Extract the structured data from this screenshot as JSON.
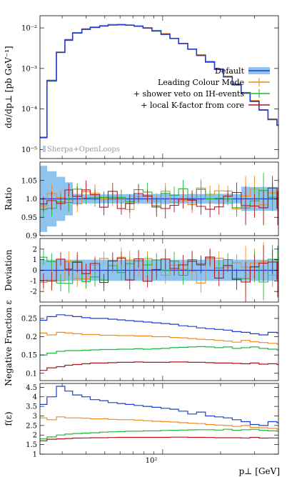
{
  "chart_data": {
    "type": "line",
    "x_axis": {
      "label": "p⊥ [GeV]",
      "scale": "log",
      "range": [
        23,
        400
      ],
      "tick_label": "10²"
    },
    "colors": {
      "Default": "#1f3cd6",
      "Leading Colour Mode": "#f08c1e",
      "+ shower veto on IH-events": "#1fb83b",
      "+ local K-factor from core": "#b3141d",
      "band": "#8fc4ef"
    },
    "watermark": "Sherpa+OpenLoops",
    "legend": {
      "placement": "right",
      "entries": [
        "Default",
        "Leading Colour Mode",
        "+ shower veto on IH-events",
        "+ local K-factor from core"
      ]
    },
    "panels": [
      {
        "id": "spectrum",
        "ylabel": "dσ/dp⊥ [pb GeV⁻¹]",
        "yscale": "log",
        "ylim": [
          6e-06,
          0.02
        ],
        "yticks": [
          {
            "v": 0.01,
            "label": "10⁻²"
          },
          {
            "v": 0.001,
            "label": "10⁻³"
          },
          {
            "v": 0.0001,
            "label": "10⁻⁴"
          },
          {
            "v": 1e-05,
            "label": "10⁻⁵"
          }
        ],
        "series": [
          {
            "name": "Default",
            "edges": [
              23,
              25,
              28,
              31,
              34,
              38,
              42,
              47,
              52,
              58,
              64,
              71,
              79,
              88,
              98,
              109,
              121,
              135,
              150,
              167,
              186,
              207,
              230,
              256,
              285,
              317,
              353,
              393,
              400
            ],
            "values": [
              2e-05,
              0.0005,
              0.0025,
              0.005,
              0.0075,
              0.0092,
              0.0103,
              0.0112,
              0.0118,
              0.012,
              0.0117,
              0.011,
              0.0099,
              0.0085,
              0.007,
              0.0055,
              0.0041,
              0.003,
              0.0021,
              0.00145,
              0.00095,
              0.00062,
              0.0004,
              0.00025,
              0.000155,
              9.5e-05,
              5.5e-05,
              4e-05
            ]
          }
        ]
      },
      {
        "id": "ratio",
        "ylabel": "Ratio",
        "ylim": [
          0.9,
          1.1
        ],
        "yticks": [
          {
            "v": 0.9,
            "label": "0.9"
          },
          {
            "v": 0.95,
            "label": "0.95"
          },
          {
            "v": 1.0,
            "label": "1.0"
          },
          {
            "v": 1.05,
            "label": "1.05"
          }
        ]
      },
      {
        "id": "deviation",
        "ylabel": "Deviation",
        "ylim": [
          -3,
          3
        ],
        "yticks": [
          {
            "v": -2,
            "label": "-2"
          },
          {
            "v": -1,
            "label": "-1"
          },
          {
            "v": 0,
            "label": "0"
          },
          {
            "v": 1,
            "label": "1"
          },
          {
            "v": 2,
            "label": "2"
          }
        ]
      },
      {
        "id": "negfrac",
        "ylabel": "Negative Fraction ε",
        "ylim": [
          0.08,
          0.285
        ],
        "yticks": [
          {
            "v": 0.1,
            "label": "0.1"
          },
          {
            "v": 0.15,
            "label": "0.15"
          },
          {
            "v": 0.2,
            "label": "0.2"
          },
          {
            "v": 0.25,
            "label": "0.25"
          }
        ],
        "series": [
          {
            "name": "Default",
            "values": [
              0.245,
              0.255,
              0.26,
              0.258,
              0.255,
              0.252,
              0.25,
              0.25,
              0.248,
              0.246,
              0.244,
              0.242,
              0.24,
              0.238,
              0.236,
              0.234,
              0.23,
              0.228,
              0.224,
              0.222,
              0.22,
              0.218,
              0.214,
              0.212,
              0.208,
              0.205,
              0.212,
              0.21
            ]
          },
          {
            "name": "Leading Colour Mode",
            "values": [
              0.21,
              0.205,
              0.212,
              0.21,
              0.208,
              0.206,
              0.206,
              0.204,
              0.204,
              0.203,
              0.203,
              0.202,
              0.202,
              0.2,
              0.2,
              0.198,
              0.197,
              0.195,
              0.193,
              0.192,
              0.19,
              0.188,
              0.185,
              0.19,
              0.186,
              0.184,
              0.182,
              0.18
            ]
          },
          {
            "name": "+ shower veto on IH-events",
            "values": [
              0.15,
              0.155,
              0.16,
              0.162,
              0.162,
              0.163,
              0.164,
              0.165,
              0.165,
              0.166,
              0.166,
              0.167,
              0.166,
              0.167,
              0.168,
              0.17,
              0.171,
              0.172,
              0.173,
              0.172,
              0.17,
              0.172,
              0.168,
              0.17,
              0.172,
              0.168,
              0.166,
              0.164
            ]
          },
          {
            "name": "+ local K-factor from core",
            "values": [
              0.108,
              0.115,
              0.118,
              0.122,
              0.124,
              0.126,
              0.128,
              0.128,
              0.129,
              0.13,
              0.13,
              0.131,
              0.13,
              0.13,
              0.13,
              0.131,
              0.131,
              0.13,
              0.13,
              0.129,
              0.128,
              0.128,
              0.127,
              0.126,
              0.128,
              0.125,
              0.126,
              0.124
            ]
          }
        ]
      },
      {
        "id": "feps",
        "ylabel": "f(ε)",
        "ylim": [
          1,
          4.7
        ],
        "yticks": [
          {
            "v": 1,
            "label": "1"
          },
          {
            "v": 1.5,
            "label": "1.5"
          },
          {
            "v": 2,
            "label": "2"
          },
          {
            "v": 2.5,
            "label": "2.5"
          },
          {
            "v": 3,
            "label": "3"
          },
          {
            "v": 3.5,
            "label": "3.5"
          },
          {
            "v": 4,
            "label": "4"
          },
          {
            "v": 4.5,
            "label": "4.5"
          }
        ],
        "series": [
          {
            "name": "Default",
            "values": [
              3.6,
              4.0,
              4.55,
              4.3,
              4.1,
              4.0,
              3.85,
              3.8,
              3.7,
              3.65,
              3.6,
              3.55,
              3.5,
              3.45,
              3.4,
              3.35,
              3.25,
              3.1,
              3.2,
              3.0,
              2.95,
              2.9,
              2.8,
              2.7,
              2.55,
              2.5,
              2.7,
              2.65
            ]
          },
          {
            "name": "Leading Colour Mode",
            "values": [
              2.9,
              2.8,
              2.95,
              2.9,
              2.9,
              2.88,
              2.85,
              2.85,
              2.82,
              2.8,
              2.8,
              2.78,
              2.75,
              2.72,
              2.7,
              2.68,
              2.65,
              2.62,
              2.6,
              2.55,
              2.52,
              2.5,
              2.45,
              2.5,
              2.4,
              2.38,
              2.35,
              2.3
            ]
          },
          {
            "name": "+ shower veto on IH-events",
            "values": [
              1.8,
              1.9,
              2.0,
              2.05,
              2.08,
              2.1,
              2.12,
              2.15,
              2.17,
              2.18,
              2.2,
              2.2,
              2.22,
              2.22,
              2.24,
              2.25,
              2.26,
              2.27,
              2.28,
              2.28,
              2.26,
              2.3,
              2.25,
              2.28,
              2.3,
              2.25,
              2.22,
              2.2
            ]
          },
          {
            "name": "+ local K-factor from core",
            "values": [
              1.7,
              1.78,
              1.8,
              1.82,
              1.84,
              1.85,
              1.86,
              1.86,
              1.87,
              1.88,
              1.88,
              1.88,
              1.88,
              1.88,
              1.88,
              1.89,
              1.89,
              1.88,
              1.88,
              1.87,
              1.86,
              1.86,
              1.86,
              1.85,
              1.88,
              1.84,
              1.85,
              1.84
            ]
          }
        ]
      }
    ]
  }
}
